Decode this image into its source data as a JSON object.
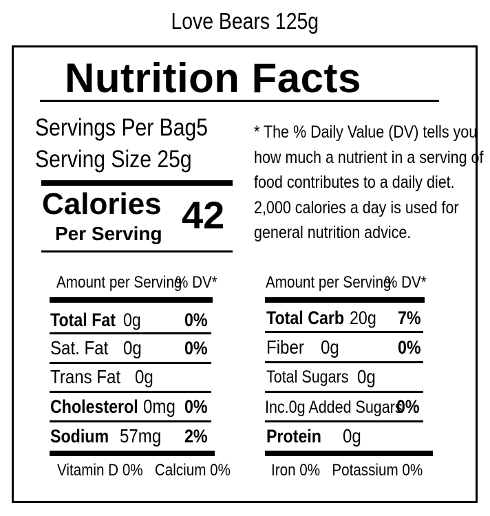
{
  "product": {
    "title": "Love Bears 125g"
  },
  "label": {
    "heading": "Nutrition Facts",
    "servings_per_label": "Servings Per Bag",
    "servings_per_value": "5",
    "serving_size_label": "Serving Size",
    "serving_size_value": "25g",
    "calories_label": "Calories",
    "calories_sublabel": "Per Serving",
    "calories_value": "42",
    "dv_note_lines": [
      "* The % Daily Value (DV) tells you",
      "how much a nutrient in a serving of",
      "food contributes to a daily diet.",
      "2,000 calories a day is used for",
      "general nutrition advice."
    ]
  },
  "left_table": {
    "header_amount": "Amount per Serving",
    "header_dv": "% DV*",
    "rows": [
      {
        "name": "Total Fat",
        "amount": "0g",
        "dv": "0%"
      },
      {
        "name": "Sat. Fat",
        "amount": "0g",
        "dv": "0%"
      },
      {
        "name": "Trans Fat",
        "amount": "0g",
        "dv": ""
      },
      {
        "name": "Cholesterol",
        "amount": "0mg",
        "dv": "0%"
      },
      {
        "name": "Sodium",
        "amount": "57mg",
        "dv": "2%"
      }
    ],
    "footer": "Vitamin D 0%   Calcium 0%"
  },
  "right_table": {
    "header_amount": "Amount per Serving",
    "header_dv": "% DV*",
    "rows": [
      {
        "name": "Total Carb",
        "amount": "20g",
        "dv": "7%"
      },
      {
        "name": "Fiber",
        "amount": "0g",
        "dv": "0%"
      },
      {
        "name": "Total Sugars",
        "amount": "0g",
        "dv": ""
      },
      {
        "name": "Inc.0g Added Sugars",
        "amount": "",
        "dv": "0%"
      },
      {
        "name": "Protein",
        "amount": "0g",
        "dv": ""
      }
    ],
    "footer": "Iron 0%   Potassium 0%"
  }
}
